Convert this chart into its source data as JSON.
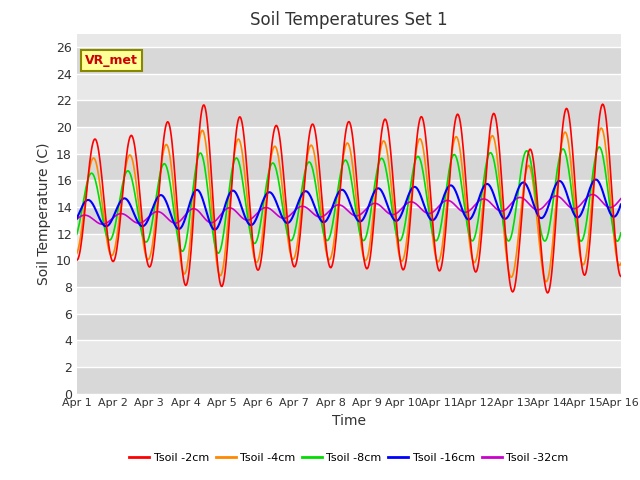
{
  "title": "Soil Temperatures Set 1",
  "xlabel": "Time",
  "ylabel": "Soil Temperature (C)",
  "ylim": [
    0,
    27
  ],
  "yticks": [
    0,
    2,
    4,
    6,
    8,
    10,
    12,
    14,
    16,
    18,
    20,
    22,
    24,
    26
  ],
  "xtick_labels": [
    "Apr 1",
    "Apr 2",
    "Apr 3",
    "Apr 4",
    "Apr 5",
    "Apr 6",
    "Apr 7",
    "Apr 8",
    "Apr 9",
    "Apr 10",
    "Apr 11",
    "Apr 12",
    "Apr 13",
    "Apr 14",
    "Apr 15",
    "Apr 16"
  ],
  "series_colors": [
    "#ff0000",
    "#ff8800",
    "#00dd00",
    "#0000ff",
    "#cc00cc"
  ],
  "series_labels": [
    "Tsoil -2cm",
    "Tsoil -4cm",
    "Tsoil -8cm",
    "Tsoil -16cm",
    "Tsoil -32cm"
  ],
  "annotation_text": "VR_met",
  "bg_color_light": "#e8e8e8",
  "bg_color_dark": "#d0d0d0",
  "grid_color": "#ffffff",
  "title_color": "#333333",
  "axis_label_color": "#333333",
  "tick_label_color": "#333333",
  "n_days": 15,
  "pts_per_day": 48
}
